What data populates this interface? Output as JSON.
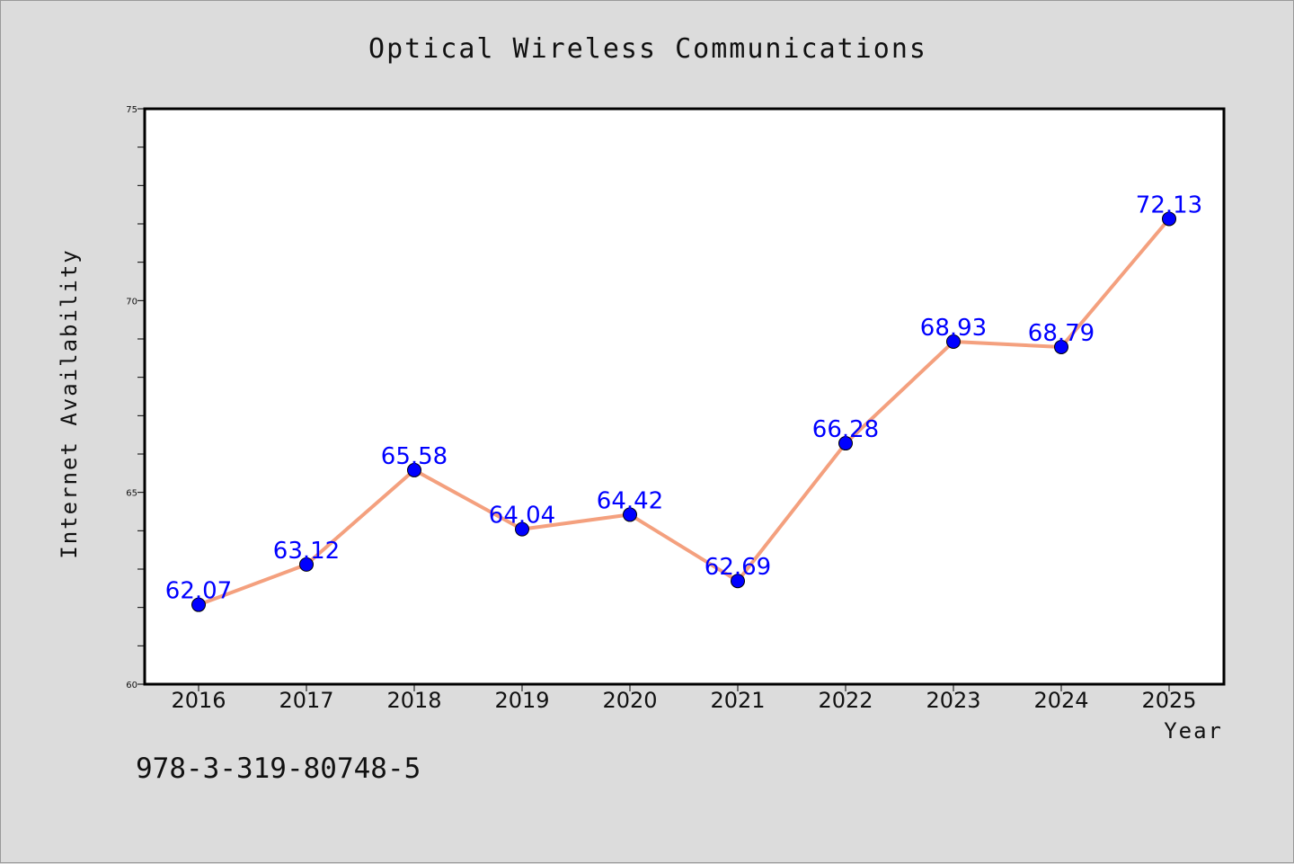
{
  "chart_data": {
    "type": "line",
    "title": "Optical Wireless Communications",
    "xlabel": "Year",
    "ylabel": "Internet Availability",
    "categories": [
      "2016",
      "2017",
      "2018",
      "2019",
      "2020",
      "2021",
      "2022",
      "2023",
      "2024",
      "2025"
    ],
    "series": [
      {
        "values": [
          62.07,
          63.12,
          65.58,
          64.04,
          64.42,
          62.69,
          66.28,
          68.93,
          68.79,
          72.13
        ],
        "labels": [
          "62.07",
          "63.12",
          "65.58",
          "64.04",
          "64.42",
          "62.69",
          "66.28",
          "68.93",
          "68.79",
          "72.13"
        ]
      }
    ],
    "ylim": [
      60,
      75
    ],
    "yticks": [
      "60",
      "65",
      "70",
      "75"
    ],
    "grid": false,
    "line_color": "#f4a07e",
    "marker_color": "#0000ff",
    "label_color": "#0000ff"
  },
  "footer": {
    "isbn": "978-3-319-80748-5"
  }
}
